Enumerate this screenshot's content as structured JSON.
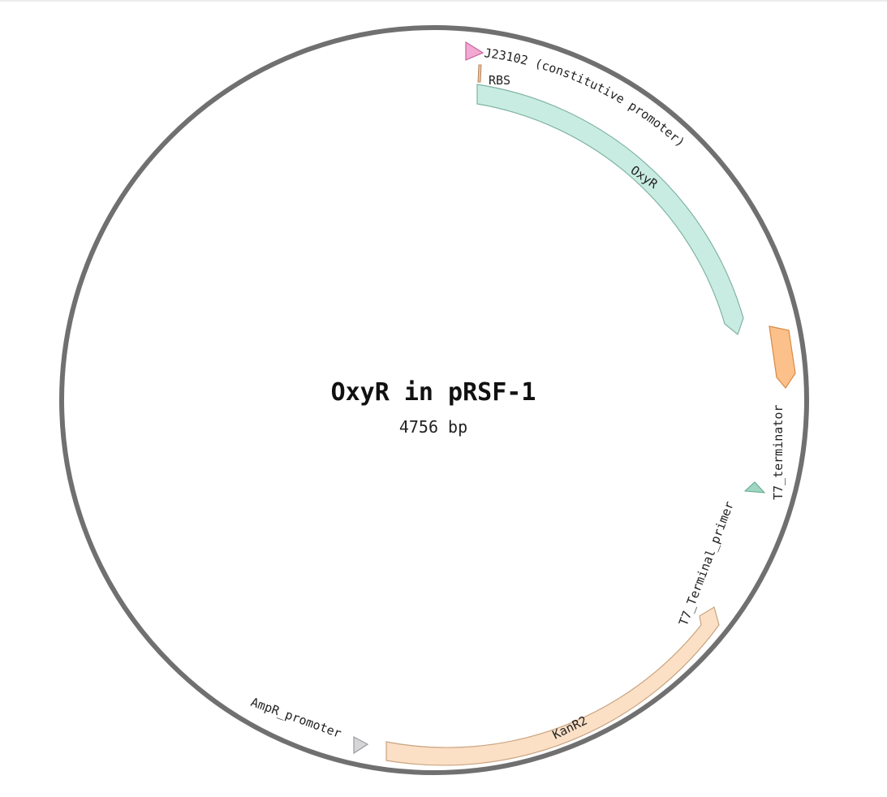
{
  "map": {
    "name": "OxyR in pRSF-1",
    "length": "4756 bp",
    "backbone_color": "#707070"
  },
  "features": [
    {
      "id": "j23102",
      "label": "J23102 (constitutive promoter)",
      "type": "promoter",
      "fill": "#f2a9d3",
      "stroke": "#c9619c"
    },
    {
      "id": "rbs",
      "label": "RBS",
      "type": "rbs",
      "fill": "#e8c3a8",
      "stroke": "#b8865f"
    },
    {
      "id": "oxyr",
      "label": "OxyR",
      "type": "cds",
      "fill": "#c9ece2",
      "stroke": "#7fb3a3"
    },
    {
      "id": "t7-terminator",
      "label": "T7_terminator",
      "type": "terminator",
      "fill": "#fcc08a",
      "stroke": "#d88a45"
    },
    {
      "id": "t7-terminal-primer",
      "label": "T7_Terminal_primer",
      "type": "primer",
      "fill": "#9fd6c2",
      "stroke": "#5fa68a"
    },
    {
      "id": "kanr2",
      "label": "KanR2",
      "type": "cds",
      "fill": "#fbe0c6",
      "stroke": "#c9a37f"
    },
    {
      "id": "ampr-promoter",
      "label": "AmpR_promoter",
      "type": "promoter",
      "fill": "#d6d6d8",
      "stroke": "#9a9a9e"
    }
  ]
}
